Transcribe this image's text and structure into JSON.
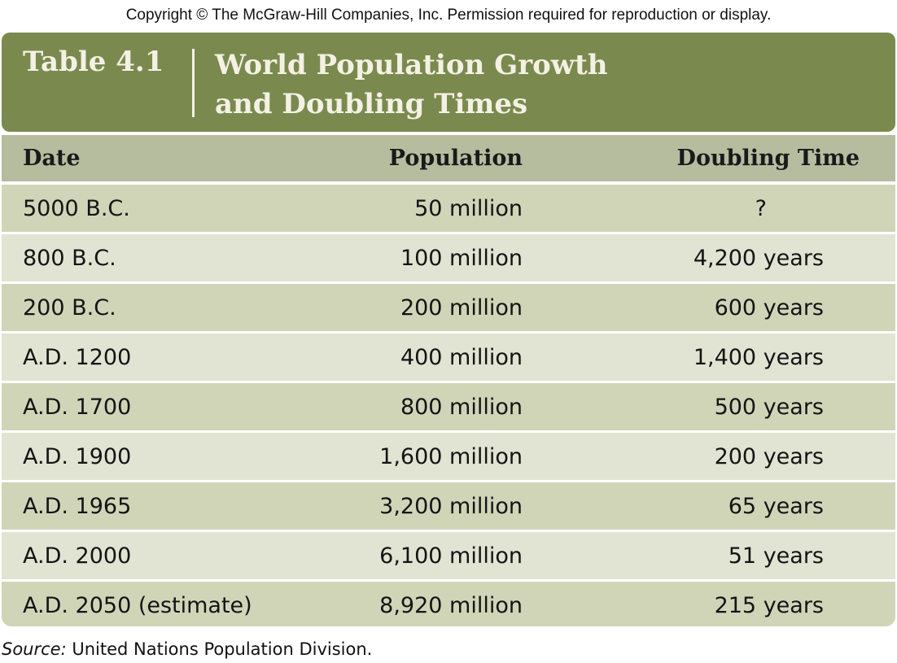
{
  "copyright": "Copyright © The McGraw-Hill Companies, Inc.  Permission required for reproduction or display.",
  "title": {
    "label": "Table 4.1",
    "line1": "World Population Growth",
    "line2": "and Doubling Times"
  },
  "columns": {
    "date": "Date",
    "population": "Population",
    "doubling": "Doubling Time"
  },
  "rows": [
    {
      "date": "5000 B.C.",
      "population": "50 million",
      "doubling": "?"
    },
    {
      "date": "800 B.C.",
      "population": "100 million",
      "doubling": "4,200 years"
    },
    {
      "date": "200 B.C.",
      "population": "200 million",
      "doubling": "600 years"
    },
    {
      "date": "A.D. 1200",
      "population": "400 million",
      "doubling": "1,400 years"
    },
    {
      "date": "A.D. 1700",
      "population": "800 million",
      "doubling": "500 years"
    },
    {
      "date": "A.D. 1900",
      "population": "1,600 million",
      "doubling": "200 years"
    },
    {
      "date": "A.D. 1965",
      "population": "3,200 million",
      "doubling": "65 years"
    },
    {
      "date": "A.D. 2000",
      "population": "6,100 million",
      "doubling": "51 years"
    },
    {
      "date": "A.D. 2050 (estimate)",
      "population": "8,920 million",
      "doubling": "215 years"
    }
  ],
  "source": {
    "label": "Source:",
    "text": " United Nations Population Division."
  },
  "colors": {
    "title_bar": "#7a8a4f",
    "header_row": "#b6bd9f",
    "row_dark": "#d1d5b8",
    "row_light": "#e1e4d3"
  }
}
